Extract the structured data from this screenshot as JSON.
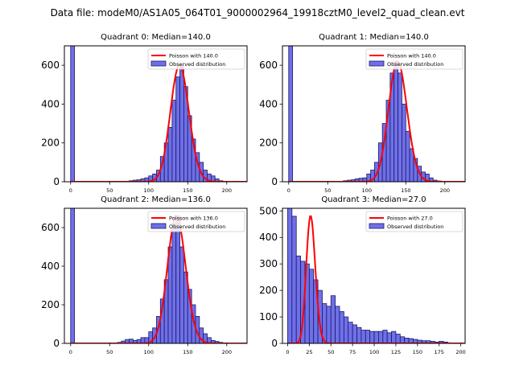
{
  "suptitle": "Data file: modeM0/AS1A05_064T01_9000002964_19918cztM0_level2_quad_clean.evt",
  "colors": {
    "bar": "#6f70e8",
    "bar_edge": "#1a1a66",
    "poisson": "#ff0000"
  },
  "chart_data": [
    {
      "type": "bar",
      "title": "Quadrant 0: Median=140.0",
      "median": 140.0,
      "legend": {
        "placement": "top-right",
        "line": "Poisson with 140.0",
        "bar": "Observed distribution"
      },
      "xlim": [
        -8,
        226
      ],
      "ylim": [
        0,
        700
      ],
      "xticks": [
        0,
        50,
        100,
        150,
        200
      ],
      "yticks": [
        0,
        200,
        400,
        600
      ],
      "bin_width": 5,
      "bins": [
        0,
        5,
        10,
        15,
        20,
        25,
        30,
        35,
        40,
        45,
        50,
        55,
        60,
        65,
        70,
        75,
        80,
        85,
        90,
        95,
        100,
        105,
        110,
        115,
        120,
        125,
        130,
        135,
        140,
        145,
        150,
        155,
        160,
        165,
        170,
        175,
        180,
        185,
        190,
        195,
        200,
        205,
        210,
        215
      ],
      "values": [
        700,
        0,
        0,
        0,
        0,
        0,
        0,
        0,
        0,
        0,
        0,
        0,
        0,
        0,
        0,
        5,
        8,
        10,
        15,
        20,
        30,
        40,
        60,
        130,
        200,
        280,
        420,
        540,
        600,
        490,
        340,
        220,
        150,
        100,
        60,
        40,
        30,
        15,
        5,
        2,
        0,
        0,
        0,
        0
      ],
      "poisson_mu": 140.0,
      "poisson_scale": 5
    },
    {
      "type": "bar",
      "title": "Quadrant 1: Median=140.0",
      "median": 140.0,
      "legend": {
        "placement": "top-right",
        "line": "Poisson with 140.0",
        "bar": "Observed distribution"
      },
      "xlim": [
        -8,
        226
      ],
      "ylim": [
        0,
        700
      ],
      "xticks": [
        0,
        50,
        100,
        150,
        200
      ],
      "yticks": [
        0,
        200,
        400,
        600
      ],
      "bin_width": 5,
      "bins": [
        0,
        5,
        10,
        15,
        20,
        25,
        30,
        35,
        40,
        45,
        50,
        55,
        60,
        65,
        70,
        75,
        80,
        85,
        90,
        95,
        100,
        105,
        110,
        115,
        120,
        125,
        130,
        135,
        140,
        145,
        150,
        155,
        160,
        165,
        170,
        175,
        180,
        185,
        190,
        195,
        200,
        205,
        210,
        215
      ],
      "values": [
        700,
        0,
        0,
        0,
        0,
        0,
        0,
        0,
        0,
        0,
        0,
        0,
        0,
        0,
        5,
        8,
        10,
        15,
        18,
        20,
        40,
        60,
        100,
        200,
        300,
        420,
        560,
        620,
        560,
        400,
        260,
        170,
        120,
        80,
        50,
        40,
        20,
        8,
        4,
        0,
        0,
        0,
        0,
        0
      ],
      "poisson_mu": 140.0,
      "poisson_scale": 5
    },
    {
      "type": "bar",
      "title": "Quadrant 2: Median=136.0",
      "median": 136.0,
      "legend": {
        "placement": "top-right",
        "line": "Poisson with 136.0",
        "bar": "Observed distribution"
      },
      "xlim": [
        -8,
        226
      ],
      "ylim": [
        0,
        700
      ],
      "xticks": [
        0,
        50,
        100,
        150,
        200
      ],
      "yticks": [
        0,
        200,
        400,
        600
      ],
      "bin_width": 5,
      "bins": [
        0,
        5,
        10,
        15,
        20,
        25,
        30,
        35,
        40,
        45,
        50,
        55,
        60,
        65,
        70,
        75,
        80,
        85,
        90,
        95,
        100,
        105,
        110,
        115,
        120,
        125,
        130,
        135,
        140,
        145,
        150,
        155,
        160,
        165,
        170,
        175,
        180,
        185,
        190,
        195,
        200,
        205,
        210,
        215
      ],
      "values": [
        700,
        0,
        0,
        0,
        0,
        0,
        0,
        0,
        0,
        0,
        0,
        0,
        5,
        12,
        20,
        22,
        15,
        20,
        30,
        30,
        60,
        80,
        140,
        230,
        330,
        500,
        620,
        660,
        500,
        370,
        280,
        200,
        140,
        80,
        50,
        30,
        15,
        10,
        5,
        2,
        0,
        0,
        0,
        0
      ],
      "poisson_mu": 136.0,
      "poisson_scale": 5
    },
    {
      "type": "bar",
      "title": "Quadrant 3: Median=27.0",
      "median": 27.0,
      "legend": {
        "placement": "top-right",
        "line": "Poisson with 27.0",
        "bar": "Observed distribution"
      },
      "xlim": [
        -6,
        205
      ],
      "ylim": [
        0,
        510
      ],
      "xticks": [
        0,
        25,
        50,
        75,
        100,
        125,
        150,
        175,
        200
      ],
      "yticks": [
        0,
        100,
        200,
        300,
        400,
        500
      ],
      "bin_width": 5,
      "bins": [
        0,
        5,
        10,
        15,
        20,
        25,
        30,
        35,
        40,
        45,
        50,
        55,
        60,
        65,
        70,
        75,
        80,
        85,
        90,
        95,
        100,
        105,
        110,
        115,
        120,
        125,
        130,
        135,
        140,
        145,
        150,
        155,
        160,
        165,
        170,
        175,
        180,
        185,
        190
      ],
      "values": [
        510,
        480,
        330,
        310,
        300,
        280,
        240,
        200,
        150,
        140,
        180,
        140,
        120,
        100,
        80,
        70,
        60,
        50,
        50,
        45,
        45,
        45,
        50,
        40,
        45,
        35,
        25,
        20,
        18,
        15,
        12,
        10,
        10,
        8,
        5,
        8,
        5,
        2,
        0
      ],
      "poisson_mu": 27.0,
      "poisson_scale": 5
    }
  ]
}
